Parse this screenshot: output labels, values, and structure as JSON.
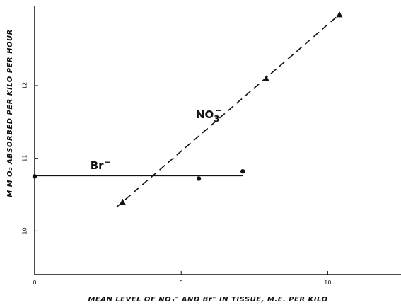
{
  "chart_data": {
    "type": "line",
    "title": "",
    "xlabel": "MEAN  LEVEL OF NO₃⁻ AND Br⁻ IN TISSUE, M.E. PER KILO",
    "ylabel": "M M O₂  ABSORBED  PER  KILO  PER  HOUR",
    "xlim": [
      0,
      12.5
    ],
    "ylim": [
      9.4,
      13.1
    ],
    "xticks": [
      0,
      5,
      10
    ],
    "xtick_labels": [
      "0",
      "5",
      "10"
    ],
    "yticks": [
      10,
      11,
      12
    ],
    "ytick_labels": [
      "10",
      "11",
      "12"
    ],
    "grid": false,
    "series": [
      {
        "name": "Br⁻",
        "label_parts": {
          "base": "Br",
          "sup": "−"
        },
        "points": [
          {
            "x": 0,
            "y": 10.75
          },
          {
            "x": 5.6,
            "y": 10.72
          },
          {
            "x": 7.1,
            "y": 10.82
          }
        ],
        "fit": {
          "x": [
            0,
            7.1
          ],
          "y": [
            10.76,
            10.76
          ],
          "style": "solid"
        },
        "marker": "circle",
        "color": "#111111"
      },
      {
        "name": "NO₃⁻",
        "label_parts": {
          "base": "NO",
          "sub": "3",
          "sup": "−"
        },
        "points": [
          {
            "x": 3.0,
            "y": 10.4
          },
          {
            "x": 7.9,
            "y": 12.1
          },
          {
            "x": 10.4,
            "y": 12.98
          }
        ],
        "fit": {
          "x": [
            2.8,
            10.4
          ],
          "y": [
            10.33,
            12.98
          ],
          "style": "dashed"
        },
        "marker": "triangle",
        "color": "#111111"
      }
    ]
  }
}
